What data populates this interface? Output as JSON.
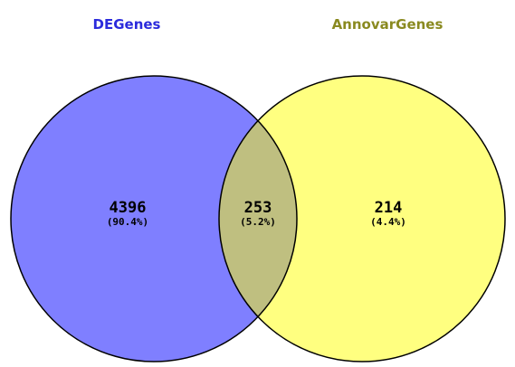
{
  "sets": [
    {
      "id": "left",
      "label": "DEGenes",
      "color": "#7f7fff",
      "label_color": "#2b2bdc"
    },
    {
      "id": "right",
      "label": "AnnovarGenes",
      "color": "#ffff80",
      "label_color": "#8a8a20"
    }
  ],
  "overlap_color": "#bfbf80",
  "regions": {
    "left_only": {
      "count": "4396",
      "percent": "(90.4%)"
    },
    "both": {
      "count": "253",
      "percent": "(5.2%)"
    },
    "right_only": {
      "count": "214",
      "percent": "(4.4%)"
    }
  }
}
